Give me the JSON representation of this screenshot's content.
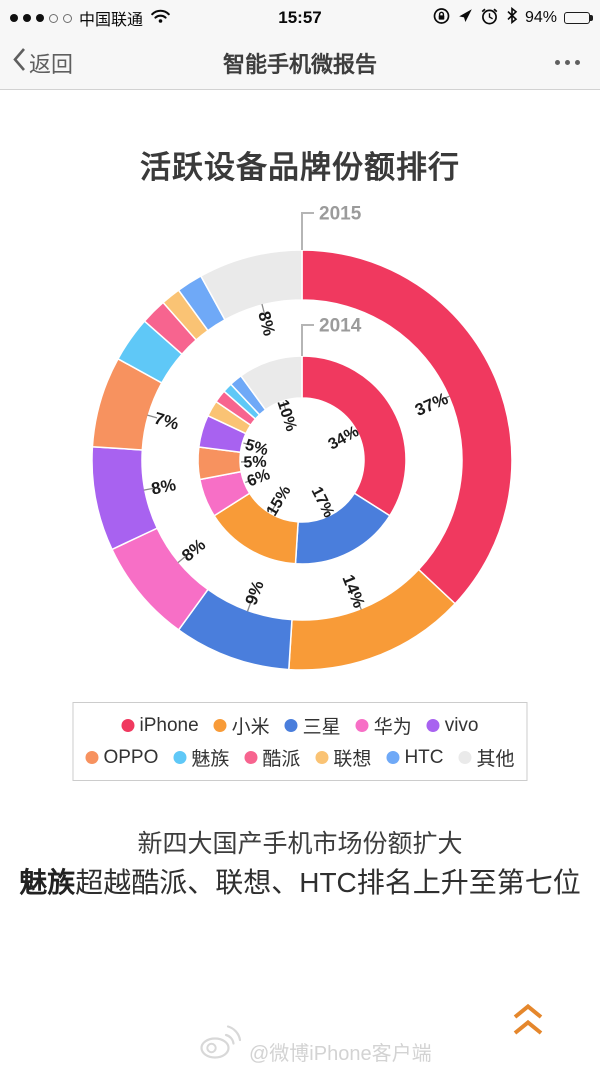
{
  "status_bar": {
    "carrier": "中国联通",
    "time": "15:57",
    "battery_percent": "94%",
    "signal": {
      "filled": 3,
      "total": 5
    },
    "icons": {
      "signal": "cell-signal-dots",
      "wifi": "wifi-icon",
      "rotation_lock": "orientation-lock-icon",
      "location": "location-arrow-icon",
      "alarm": "alarm-clock-icon",
      "bluetooth": "bluetooth-icon",
      "battery": "battery-icon"
    }
  },
  "nav_bar": {
    "back_label": "返回",
    "title": "智能手机微报告",
    "icons": {
      "back": "chevron-left-icon",
      "more": "ellipsis-icon"
    }
  },
  "article": {
    "chart_title": "活跃设备品牌份额排行",
    "caption_line1": "新四大国产手机市场份额扩大",
    "caption_line2_bold": "魅族",
    "caption_line2_rest": "超越酷派、联想、HTC排名上升至第七位",
    "watermark": "@微博iPhone客户端",
    "icons": {
      "weibo": "weibo-logo-icon",
      "to_top": "chevrons-up-icon"
    }
  },
  "chart_data": {
    "type": "donut",
    "title": "活跃设备品牌份额排行",
    "label_format": "{value}%",
    "label_threshold": 5,
    "start_angle_deg": 0,
    "direction": "clockwise",
    "rings": [
      {
        "year": "2015",
        "position": "outer",
        "slices": [
          {
            "name": "iPhone",
            "value": 37
          },
          {
            "name": "小米",
            "value": 14
          },
          {
            "name": "三星",
            "value": 9
          },
          {
            "name": "华为",
            "value": 8
          },
          {
            "name": "vivo",
            "value": 8
          },
          {
            "name": "OPPO",
            "value": 7
          },
          {
            "name": "魅族",
            "value": 3.5
          },
          {
            "name": "酷派",
            "value": 2
          },
          {
            "name": "联想",
            "value": 1.5
          },
          {
            "name": "HTC",
            "value": 2
          },
          {
            "name": "其他",
            "value": 8
          }
        ]
      },
      {
        "year": "2014",
        "position": "inner",
        "slices": [
          {
            "name": "iPhone",
            "value": 34
          },
          {
            "name": "三星",
            "value": 17
          },
          {
            "name": "小米",
            "value": 15
          },
          {
            "name": "华为",
            "value": 6
          },
          {
            "name": "OPPO",
            "value": 5
          },
          {
            "name": "vivo",
            "value": 5
          },
          {
            "name": "联想",
            "value": 2.5
          },
          {
            "name": "酷派",
            "value": 2
          },
          {
            "name": "魅族",
            "value": 1.5
          },
          {
            "name": "HTC",
            "value": 2
          },
          {
            "name": "其他",
            "value": 10
          }
        ]
      }
    ],
    "colors": {
      "iPhone": "#F0395F",
      "小米": "#F89B38",
      "三星": "#4A7EDC",
      "华为": "#F76FC6",
      "vivo": "#A862F0",
      "OPPO": "#F7925F",
      "魅族": "#5FC8F7",
      "酷派": "#F7648F",
      "联想": "#FAC374",
      "HTC": "#6FA9F7",
      "其他": "#EAEAEA"
    },
    "label_color": "#1b1b1b",
    "callout_color": "#9b9b9b"
  },
  "legend": {
    "rows": [
      [
        "iPhone",
        "小米",
        "三星",
        "华为",
        "vivo"
      ],
      [
        "OPPO",
        "魅族",
        "酷派",
        "联想",
        "HTC",
        "其他"
      ]
    ]
  }
}
